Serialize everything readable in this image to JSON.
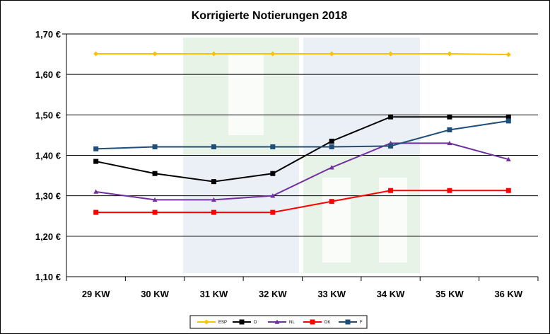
{
  "chart_data": {
    "type": "line",
    "title": "Korrigierte Notierungen 2018",
    "categories": [
      "29 KW",
      "30 KW",
      "31 KW",
      "32 KW",
      "33 KW",
      "34 KW",
      "35 KW",
      "36 KW"
    ],
    "y_ticks": [
      "1,10 €",
      "1,20 €",
      "1,30 €",
      "1,40 €",
      "1,50 €",
      "1,60 €",
      "1,70 €"
    ],
    "ylim": [
      1.1,
      1.7
    ],
    "grid": true,
    "legend_position": "bottom",
    "series": [
      {
        "name": "ESP",
        "color": "#FFC000",
        "marker": "diamond",
        "values": [
          1.651,
          1.651,
          1.651,
          1.651,
          1.651,
          1.651,
          1.651,
          1.649
        ]
      },
      {
        "name": "D",
        "color": "#000000",
        "marker": "square",
        "values": [
          1.385,
          1.355,
          1.335,
          1.355,
          1.435,
          1.495,
          1.495,
          1.495
        ]
      },
      {
        "name": "NL",
        "color": "#7030A0",
        "marker": "triangle",
        "values": [
          1.31,
          1.29,
          1.29,
          1.3,
          1.37,
          1.43,
          1.43,
          1.39
        ]
      },
      {
        "name": "DK",
        "color": "#FF0000",
        "marker": "square",
        "values": [
          1.259,
          1.259,
          1.259,
          1.259,
          1.286,
          1.313,
          1.313,
          1.313
        ]
      },
      {
        "name": "F",
        "color": "#1F4E79",
        "marker": "square",
        "values": [
          1.416,
          1.421,
          1.421,
          1.421,
          1.421,
          1.423,
          1.463,
          1.485
        ]
      }
    ]
  }
}
